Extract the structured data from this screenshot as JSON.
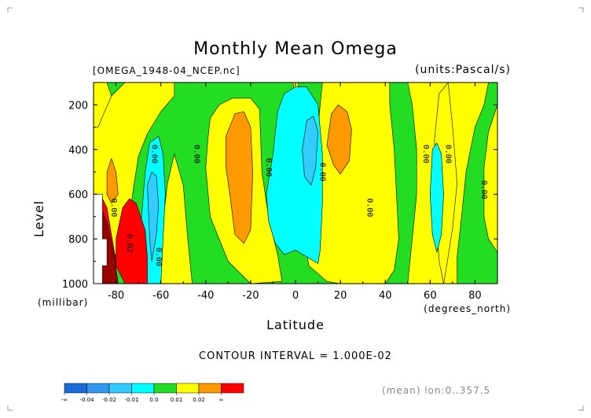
{
  "header": {
    "title": "Monthly Mean Omega",
    "file_label": "[OMEGA_1948-04_NCEP.nc]",
    "units_label": "(units:Pascal/s)",
    "contour_interval": "CONTOUR INTERVAL = 1.000E-02",
    "mean_note": "(mean) lon:0..357.5"
  },
  "colors": {
    "dark_blue": "#1a6bd9",
    "blue": "#3399f0",
    "light_blue": "#33ccff",
    "cyan": "#00ffff",
    "green": "#22dd22",
    "yellow": "#ffff00",
    "orange": "#ff9900",
    "red": "#ff0000",
    "dark_red": "#990000",
    "white": "#ffffff"
  },
  "chart_data": {
    "type": "contour",
    "title": "Monthly Mean Omega",
    "xlabel": "Latitude",
    "xunit": "(degrees_north)",
    "ylabel": "Level",
    "yunit": "(millibar)",
    "xlim": [
      -90,
      90
    ],
    "ylim": [
      1000,
      100
    ],
    "xticks": [
      -80,
      -60,
      -40,
      -20,
      0,
      20,
      40,
      60,
      80
    ],
    "xtick_labels": [
      "-80",
      "-60",
      "-40",
      "-20",
      "0",
      "20",
      "40",
      "60",
      "80"
    ],
    "yticks": [
      200,
      400,
      600,
      800,
      1000
    ],
    "ytick_labels": [
      "200",
      "400",
      "600",
      "800",
      "1000"
    ],
    "contour_interval": 0.01,
    "legend": {
      "colors": [
        "#1a6bd9",
        "#3399f0",
        "#33ccff",
        "#00ffff",
        "#22dd22",
        "#ffff00",
        "#ff9900",
        "#ff0000"
      ],
      "labels": [
        "-∞",
        "-0.04",
        "-0.02",
        "-0.01",
        "0.0",
        "0.01",
        "0.02",
        "∞"
      ]
    },
    "contour_labels": [
      {
        "lat": -64,
        "p": 420,
        "text": "0.00"
      },
      {
        "lat": -45,
        "p": 420,
        "text": "0.00"
      },
      {
        "lat": -13,
        "p": 480,
        "text": "0.00"
      },
      {
        "lat": -82,
        "p": 660,
        "text": "0.00"
      },
      {
        "lat": -75,
        "p": 820,
        "text": "0.02"
      },
      {
        "lat": -62,
        "p": 880,
        "text": "0.00"
      },
      {
        "lat": 11,
        "p": 500,
        "text": "0.00"
      },
      {
        "lat": 32,
        "p": 660,
        "text": "0.00"
      },
      {
        "lat": 57,
        "p": 420,
        "text": "0.00"
      },
      {
        "lat": 67,
        "p": 420,
        "text": "0.00"
      },
      {
        "lat": 83,
        "p": 580,
        "text": "0.00"
      }
    ],
    "regions": [
      {
        "fill": "green",
        "poly": [
          [
            -90,
            100
          ],
          [
            90,
            100
          ],
          [
            90,
            1000
          ],
          [
            -90,
            1000
          ]
        ]
      },
      {
        "fill": "yellow",
        "poly": [
          [
            -76,
            100
          ],
          [
            -54,
            100
          ],
          [
            -54,
            160
          ],
          [
            -60,
            230
          ],
          [
            -66,
            330
          ],
          [
            -70,
            430
          ],
          [
            -72,
            560
          ],
          [
            -74,
            700
          ],
          [
            -76,
            800
          ],
          [
            -82,
            900
          ],
          [
            -90,
            930
          ],
          [
            -90,
            300
          ],
          [
            -82,
            160
          ]
        ]
      },
      {
        "fill": "yellow",
        "poly": [
          [
            -90,
            100
          ],
          [
            -84,
            100
          ],
          [
            -82,
            160
          ],
          [
            -88,
            300
          ],
          [
            -90,
            300
          ]
        ]
      },
      {
        "fill": "yellow",
        "poly": [
          [
            -62,
            1000
          ],
          [
            -60,
            800
          ],
          [
            -57,
            550
          ],
          [
            -54,
            420
          ],
          [
            -50,
            560
          ],
          [
            -48,
            800
          ],
          [
            -46,
            1000
          ]
        ]
      },
      {
        "fill": "yellow",
        "poly": [
          [
            -38,
            260
          ],
          [
            -34,
            200
          ],
          [
            -28,
            170
          ],
          [
            -20,
            170
          ],
          [
            -16,
            220
          ],
          [
            -15,
            500
          ],
          [
            -12,
            700
          ],
          [
            -8,
            870
          ],
          [
            -6,
            990
          ],
          [
            -20,
            1000
          ],
          [
            -30,
            900
          ],
          [
            -38,
            700
          ],
          [
            -40,
            480
          ],
          [
            -39,
            350
          ]
        ]
      },
      {
        "fill": "yellow",
        "poly": [
          [
            -4,
            100
          ],
          [
            -1,
            100
          ],
          [
            1,
            360
          ],
          [
            2,
            700
          ],
          [
            6,
            920
          ],
          [
            14,
            990
          ],
          [
            20,
            1000
          ],
          [
            40,
            1000
          ],
          [
            44,
            940
          ],
          [
            46,
            800
          ],
          [
            45,
            600
          ],
          [
            44,
            400
          ],
          [
            42,
            200
          ],
          [
            42,
            100
          ],
          [
            12,
            100
          ],
          [
            10,
            300
          ],
          [
            8,
            450
          ],
          [
            4,
            250
          ],
          [
            1,
            100
          ]
        ]
      },
      {
        "fill": "yellow",
        "poly": [
          [
            50,
            100
          ],
          [
            52,
            200
          ],
          [
            54,
            400
          ],
          [
            54,
            600
          ],
          [
            52,
            800
          ],
          [
            50,
            1000
          ],
          [
            72,
            1000
          ],
          [
            72,
            880
          ],
          [
            74,
            700
          ],
          [
            76,
            500
          ],
          [
            80,
            300
          ],
          [
            84,
            200
          ],
          [
            86,
            100
          ],
          [
            90,
            100
          ],
          [
            90,
            200
          ],
          [
            86,
            320
          ],
          [
            84,
            480
          ],
          [
            84,
            700
          ],
          [
            86,
            800
          ],
          [
            90,
            860
          ],
          [
            90,
            1000
          ],
          [
            90,
            100
          ]
        ]
      },
      {
        "fill": "yellow",
        "poly": [
          [
            68,
            100
          ],
          [
            70,
            300
          ],
          [
            72,
            550
          ],
          [
            70,
            750
          ],
          [
            68,
            880
          ],
          [
            66,
            1000
          ],
          [
            64,
            900
          ],
          [
            62,
            600
          ],
          [
            62,
            350
          ],
          [
            64,
            150
          ]
        ]
      },
      {
        "fill": "orange",
        "poly": [
          [
            -31,
            340
          ],
          [
            -27,
            240
          ],
          [
            -23,
            230
          ],
          [
            -20,
            300
          ],
          [
            -19,
            500
          ],
          [
            -20,
            760
          ],
          [
            -23,
            820
          ],
          [
            -27,
            780
          ],
          [
            -29,
            620
          ],
          [
            -31,
            480
          ]
        ]
      },
      {
        "fill": "orange",
        "poly": [
          [
            14,
            380
          ],
          [
            16,
            240
          ],
          [
            19,
            200
          ],
          [
            23,
            230
          ],
          [
            25,
            310
          ],
          [
            24,
            450
          ],
          [
            20,
            510
          ],
          [
            17,
            470
          ]
        ]
      },
      {
        "fill": "orange",
        "poly": [
          [
            -84,
            500
          ],
          [
            -82,
            440
          ],
          [
            -80,
            500
          ],
          [
            -79,
            600
          ],
          [
            -82,
            640
          ],
          [
            -84,
            600
          ]
        ]
      },
      {
        "fill": "cyan",
        "poly": [
          [
            -68,
            1000
          ],
          [
            -69,
            750
          ],
          [
            -67,
            500
          ],
          [
            -65,
            370
          ],
          [
            -61,
            340
          ],
          [
            -59,
            420
          ],
          [
            -58,
            600
          ],
          [
            -59,
            800
          ],
          [
            -60,
            1000
          ]
        ]
      },
      {
        "fill": "cyan",
        "poly": [
          [
            -13,
            600
          ],
          [
            -10,
            420
          ],
          [
            -8,
            230
          ],
          [
            -5,
            150
          ],
          [
            0,
            120
          ],
          [
            5,
            120
          ],
          [
            10,
            200
          ],
          [
            12,
            420
          ],
          [
            12,
            640
          ],
          [
            11,
            850
          ],
          [
            10,
            910
          ],
          [
            5,
            880
          ],
          [
            0,
            850
          ],
          [
            -5,
            870
          ],
          [
            -9,
            820
          ],
          [
            -12,
            720
          ]
        ]
      },
      {
        "fill": "cyan",
        "poly": [
          [
            61,
            400
          ],
          [
            63,
            370
          ],
          [
            65,
            420
          ],
          [
            66,
            600
          ],
          [
            65,
            780
          ],
          [
            63,
            860
          ],
          [
            61,
            780
          ],
          [
            60,
            600
          ]
        ]
      },
      {
        "fill": "light_blue",
        "poly": [
          [
            -66,
            560
          ],
          [
            -64,
            500
          ],
          [
            -62,
            520
          ],
          [
            -61,
            650
          ],
          [
            -62,
            780
          ],
          [
            -64,
            900
          ],
          [
            -65,
            800
          ]
        ]
      },
      {
        "fill": "light_blue",
        "poly": [
          [
            3,
            400
          ],
          [
            5,
            270
          ],
          [
            8,
            250
          ],
          [
            10,
            320
          ],
          [
            9,
            480
          ],
          [
            7,
            560
          ],
          [
            4,
            520
          ]
        ]
      },
      {
        "fill": "red",
        "poly": [
          [
            -77,
            660
          ],
          [
            -74,
            620
          ],
          [
            -71,
            640
          ],
          [
            -67,
            760
          ],
          [
            -66,
            880
          ],
          [
            -66,
            1000
          ],
          [
            -76,
            1000
          ],
          [
            -80,
            920
          ],
          [
            -80,
            800
          ]
        ]
      },
      {
        "fill": "red",
        "poly": [
          [
            -90,
            900
          ],
          [
            -86,
            620
          ],
          [
            -84,
            660
          ],
          [
            -82,
            780
          ],
          [
            -80,
            900
          ],
          [
            -80,
            1000
          ],
          [
            -90,
            1000
          ]
        ]
      },
      {
        "fill": "dark_red",
        "poly": [
          [
            -90,
            920
          ],
          [
            -86,
            680
          ],
          [
            -84,
            720
          ],
          [
            -81,
            860
          ],
          [
            -79,
            1000
          ],
          [
            -90,
            1000
          ]
        ]
      },
      {
        "fill": "white",
        "poly": [
          [
            -90,
            600
          ],
          [
            -86,
            600
          ],
          [
            -86,
            800
          ],
          [
            -84,
            800
          ],
          [
            -84,
            920
          ],
          [
            -86,
            920
          ],
          [
            -86,
            1000
          ],
          [
            -90,
            1000
          ]
        ]
      }
    ]
  }
}
